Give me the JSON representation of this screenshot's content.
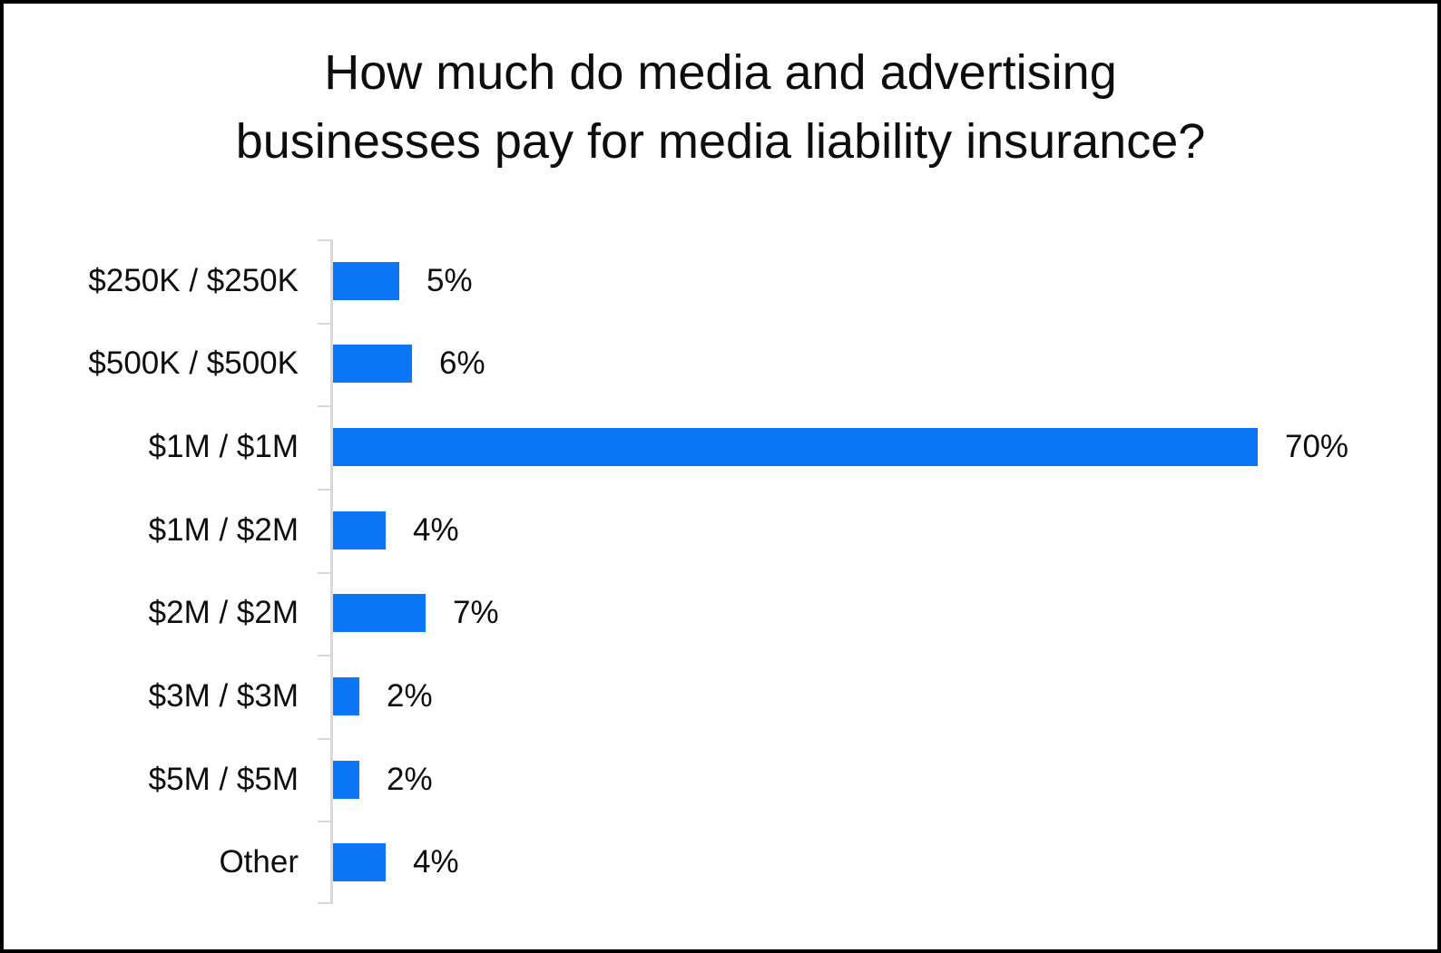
{
  "chart_data": {
    "type": "bar",
    "orientation": "horizontal",
    "title": "How much do media and advertising businesses pay for media liability insurance?",
    "title_lines": [
      "How much do media and advertising",
      "businesses pay for media liability insurance?"
    ],
    "categories": [
      "$250K / $250K",
      "$500K / $500K",
      "$1M / $1M",
      "$1M / $2M",
      "$2M / $2M",
      "$3M / $3M",
      "$5M / $5M",
      "Other"
    ],
    "values": [
      5,
      6,
      70,
      4,
      7,
      2,
      2,
      4
    ],
    "value_labels": [
      "5%",
      "6%",
      "70%",
      "4%",
      "7%",
      "2%",
      "2%",
      "4%"
    ],
    "unit": "%",
    "xlabel": "",
    "ylabel": "",
    "xlim": [
      0,
      70
    ],
    "grid": false,
    "legend": false,
    "data_labels_position": "outside-end",
    "colors": {
      "bar": "#0b76f6",
      "axis": "#d9d9d9",
      "text": "#0d0d0d",
      "background": "#ffffff",
      "frame_border": "#000000"
    }
  }
}
